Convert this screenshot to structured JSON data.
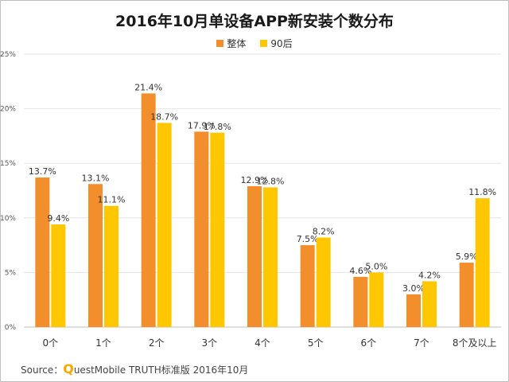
{
  "chart_data": {
    "type": "bar",
    "title": "2016年10月单设备APP新安装个数分布",
    "categories": [
      "0个",
      "1个",
      "2个",
      "3个",
      "4个",
      "5个",
      "6个",
      "7个",
      "8个及以上"
    ],
    "series": [
      {
        "name": "整体",
        "color": "#f28e2b",
        "values": [
          13.7,
          13.1,
          21.4,
          17.9,
          12.9,
          7.5,
          4.6,
          3.0,
          5.9
        ]
      },
      {
        "name": "90后",
        "color": "#ffc700",
        "values": [
          9.4,
          11.1,
          18.7,
          17.8,
          12.8,
          8.2,
          5.0,
          4.2,
          11.8
        ]
      }
    ],
    "value_suffix": "%",
    "yticks": [
      "0%",
      "5%",
      "10%",
      "15%",
      "20%",
      "25%"
    ],
    "ylim": [
      0,
      25
    ],
    "grid": true,
    "legend": "top-center"
  },
  "source": {
    "prefix": "Source：",
    "q": "Q",
    "brand": "uestMobile TRUTH标准版 2016年10月"
  }
}
